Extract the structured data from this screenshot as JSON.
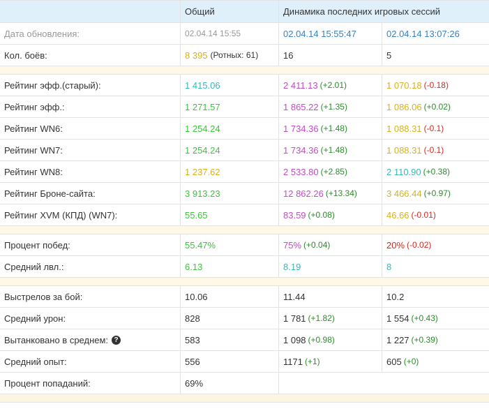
{
  "header": {
    "col_overall": "Общий",
    "col_dynamics": "Динамика последних игровых сессий"
  },
  "update_row": {
    "label": "Дата обновления:",
    "overall": "02.04.14 15:55",
    "session1": "02.04.14 15:55:47",
    "session2": "02.04.14 13:07:26"
  },
  "battles_row": {
    "label": "Кол. боёв:",
    "overall": "8 395",
    "overall_sub": "(Ротных: 61)",
    "session1": "16",
    "session2": "5"
  },
  "ratings": [
    {
      "label": "Рейтинг эфф.(старый):",
      "overall": "1 415.06",
      "overall_color": "teal",
      "s1": "2 411.13",
      "s1_color": "purple",
      "s1_delta": "(+2.01)",
      "s1_delta_sign": "pos",
      "s2": "1 070.18",
      "s2_color": "yellow",
      "s2_delta": "(-0.18)",
      "s2_delta_sign": "neg"
    },
    {
      "label": "Рейтинг эфф.:",
      "overall": "1 271.57",
      "overall_color": "green",
      "s1": "1 865.22",
      "s1_color": "purple",
      "s1_delta": "(+1.35)",
      "s1_delta_sign": "pos",
      "s2": "1 086.06",
      "s2_color": "yellow",
      "s2_delta": "(+0.02)",
      "s2_delta_sign": "pos"
    },
    {
      "label": "Рейтинг WN6:",
      "overall": "1 254.24",
      "overall_color": "green",
      "s1": "1 734.36",
      "s1_color": "purple",
      "s1_delta": "(+1.48)",
      "s1_delta_sign": "pos",
      "s2": "1 088.31",
      "s2_color": "yellow",
      "s2_delta": "(-0.1)",
      "s2_delta_sign": "neg"
    },
    {
      "label": "Рейтинг WN7:",
      "overall": "1 254.24",
      "overall_color": "green",
      "s1": "1 734.36",
      "s1_color": "purple",
      "s1_delta": "(+1.48)",
      "s1_delta_sign": "pos",
      "s2": "1 088.31",
      "s2_color": "yellow",
      "s2_delta": "(-0.1)",
      "s2_delta_sign": "neg"
    },
    {
      "label": "Рейтинг WN8:",
      "overall": "1 237.62",
      "overall_color": "yellow",
      "s1": "2 533.80",
      "s1_color": "purple",
      "s1_delta": "(+2.85)",
      "s1_delta_sign": "pos",
      "s2": "2 110.90",
      "s2_color": "teal",
      "s2_delta": "(+0.38)",
      "s2_delta_sign": "pos"
    },
    {
      "label": "Рейтинг Броне-сайта:",
      "overall": "3 913.23",
      "overall_color": "green",
      "s1": "12 862.26",
      "s1_color": "purple",
      "s1_delta": "(+13.34)",
      "s1_delta_sign": "pos",
      "s2": "3 466.44",
      "s2_color": "yellow",
      "s2_delta": "(+0.97)",
      "s2_delta_sign": "pos"
    },
    {
      "label": "Рейтинг XVM (КПД) (WN7):",
      "overall": "55.65",
      "overall_color": "green",
      "s1": "83.59",
      "s1_color": "purple",
      "s1_delta": "(+0.08)",
      "s1_delta_sign": "pos",
      "s2": "46.66",
      "s2_color": "yellow",
      "s2_delta": "(-0.01)",
      "s2_delta_sign": "neg"
    }
  ],
  "winrate": [
    {
      "label": "Процент побед:",
      "overall": "55.47%",
      "overall_color": "green",
      "s1": "75%",
      "s1_color": "purple",
      "s1_delta": "(+0.04)",
      "s1_delta_sign": "pos",
      "s2": "20%",
      "s2_color": "red",
      "s2_delta": "(-0.02)",
      "s2_delta_sign": "neg"
    },
    {
      "label": "Средний лвл.:",
      "overall": "6.13",
      "overall_color": "green",
      "s1": "8.19",
      "s1_color": "teal",
      "s1_delta": "",
      "s1_delta_sign": "pos",
      "s2": "8",
      "s2_color": "teal",
      "s2_delta": "",
      "s2_delta_sign": "pos"
    }
  ],
  "battle_stats": [
    {
      "label": "Выстрелов за бой:",
      "overall": "10.06",
      "s1": "11.44",
      "s1_delta": "",
      "s2": "10.2",
      "s2_delta": "",
      "help": false
    },
    {
      "label": "Средний урон:",
      "overall": "828",
      "s1": "1 781",
      "s1_delta": "(+1.82)",
      "s2": "1 554",
      "s2_delta": "(+0.43)",
      "help": false
    },
    {
      "label": "Вытанковано в среднем:",
      "overall": "583",
      "s1": "1 098",
      "s1_delta": "(+0.98)",
      "s2": "1 227",
      "s2_delta": "(+0.39)",
      "help": true
    },
    {
      "label": "Средний опыт:",
      "overall": "556",
      "s1": "1171",
      "s1_delta": "(+1)",
      "s2": "605",
      "s2_delta": "(+0)",
      "help": false
    }
  ],
  "hit_row": {
    "label": "Процент попаданий:",
    "overall": "69%"
  },
  "icons": {
    "help": "question-circle-icon"
  },
  "colors": {
    "header_bg": "#dff0fb",
    "blue": "#3a80c1",
    "green": "#3cc43c",
    "yellow": "#d7b21c",
    "teal": "#38b8b8",
    "purple": "#c44bc7",
    "red": "#d9261c",
    "separator_bg": "#fdf8e8"
  }
}
